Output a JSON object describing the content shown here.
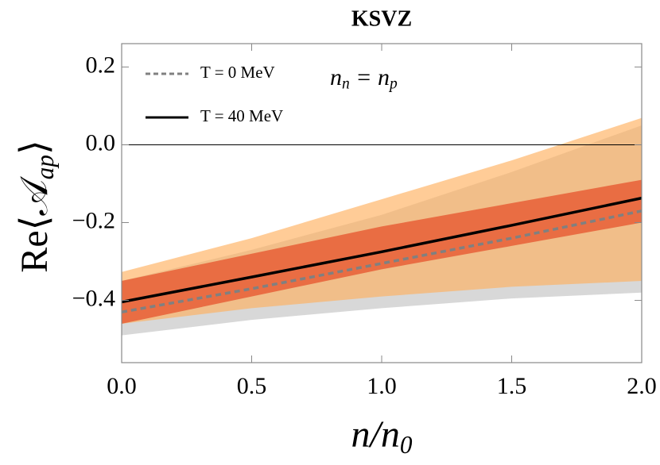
{
  "chart_data": {
    "type": "line",
    "title": "KSVZ",
    "xlabel": [
      "n/n",
      "0"
    ],
    "ylabel": [
      "Re⟨𝒜",
      "ap",
      "⟩"
    ],
    "annotation": [
      "n",
      "n",
      " = n",
      "p"
    ],
    "x": [
      0,
      0.5,
      1,
      1.5,
      2
    ],
    "bands": [
      {
        "color": "#d4d4d4",
        "lower": [
          -0.49,
          -0.45,
          -0.42,
          -0.395,
          -0.38
        ],
        "upper": [
          -0.35,
          -0.27,
          -0.18,
          -0.07,
          0.05
        ]
      },
      {
        "color": "#ffb15f",
        "lower": [
          -0.46,
          -0.42,
          -0.39,
          -0.365,
          -0.35
        ],
        "upper": [
          -0.327,
          -0.24,
          -0.14,
          -0.04,
          0.069
        ]
      },
      {
        "color": "#e8643c",
        "lower": [
          -0.46,
          -0.39,
          -0.32,
          -0.26,
          -0.2
        ],
        "upper": [
          -0.35,
          -0.28,
          -0.21,
          -0.15,
          -0.09
        ]
      }
    ],
    "series": [
      {
        "name": "T = 0 MeV",
        "color": "#808080",
        "dash": true,
        "values": [
          -0.43,
          -0.37,
          -0.305,
          -0.24,
          -0.17
        ]
      },
      {
        "name": "T = 40 MeV",
        "color": "#000000",
        "dash": false,
        "values": [
          -0.404,
          -0.34,
          -0.275,
          -0.207,
          -0.137
        ]
      }
    ],
    "xlim": [
      0,
      2
    ],
    "ylim": [
      -0.56,
      0.26
    ],
    "xticks": [
      {
        "value": 0,
        "label": "0.0"
      },
      0.5,
      {
        "value": 1,
        "label": "1.0"
      },
      1.5,
      {
        "value": 2,
        "label": "2.0"
      }
    ],
    "yticks": [
      {
        "value": -0.4,
        "label": "−0.4"
      },
      {
        "value": -0.2,
        "label": "−0.2"
      },
      {
        "value": 0,
        "label": "0.0"
      },
      0.2
    ],
    "zero_line": true
  }
}
